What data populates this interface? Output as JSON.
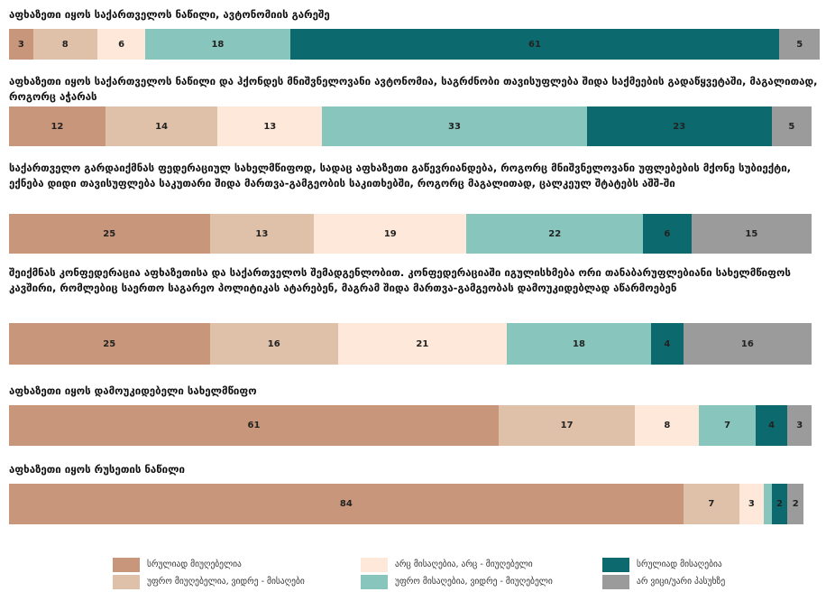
{
  "chart_data": {
    "type": "stacked-bar-horizontal",
    "categories": [
      "აფხაზეთი იყოს საქართველოს ნაწილი, ავტონომიის გარეშე",
      "აფხაზეთი იყოს საქართველოს ნაწილი და ჰქონდეს მნიშვნელოვანი ავტონომია, საგრძნობი თავისუფლება შიდა საქმეების გადაწყვეტაში, მაგალითად, როგორც აჭარას",
      "საქართველო გარდაიქმნას ფედერაციულ სახელმწიფოდ, სადაც აფხაზეთი გაწევრიანდება, როგორც მნიშვნელოვანი უფლებების მქონე სუბიექტი,  ექნება დიდი თავისუფლება საკუთარი შიდა მართვა-გამგეობის საკითხებში, როგორც მაგალითად, ცალკეულ შტატებს აშშ-ში",
      "შეიქმნას კონფედერაცია აფხაზეთისა და საქართველოს შემადგენლობით. კონფედერაციაში იგულისხმება ორი თანაბარუფლებიანი სახელმწიფოს კავშირი, რომლებიც საერთო საგარეო პოლიტიკას ატარებენ, მაგრამ შიდა მართვა-გამგეობას დამოუკიდებლად აწარმოებენ",
      "აფხაზეთი იყოს დამოუკიდებელი სახელმწიფო",
      "აფხაზეთი იყოს რუსეთის ნაწილი"
    ],
    "series": [
      {
        "name": "სრულიად მიუღებელია",
        "color": "#c8977b",
        "values": [
          3,
          12,
          25,
          25,
          61,
          84
        ]
      },
      {
        "name": "უფრო მიუღებელია, ვიდრე - მისაღები",
        "color": "#dfc0a9",
        "values": [
          8,
          14,
          13,
          16,
          17,
          7
        ]
      },
      {
        "name": "არც მისაღებია, არც - მიუღებელი",
        "color": "#fde8d9",
        "values": [
          6,
          13,
          19,
          21,
          8,
          3
        ]
      },
      {
        "name": "უფრო მისაღებია, ვიდრე - მიუღებელი",
        "color": "#87c5bd",
        "values": [
          18,
          33,
          22,
          18,
          7,
          1
        ],
        "value_labels": [
          "18",
          "33",
          "22",
          "18",
          "7",
          null
        ]
      },
      {
        "name": "სრულიად მისაღებია",
        "color": "#0c6a6e",
        "values": [
          61,
          23,
          6,
          4,
          4,
          2
        ]
      },
      {
        "name": "არ ვიცი/უარი პასუხზე",
        "color": "#9b9b9b",
        "values": [
          5,
          5,
          15,
          16,
          3,
          2
        ]
      }
    ],
    "xlim": [
      0,
      101
    ]
  }
}
